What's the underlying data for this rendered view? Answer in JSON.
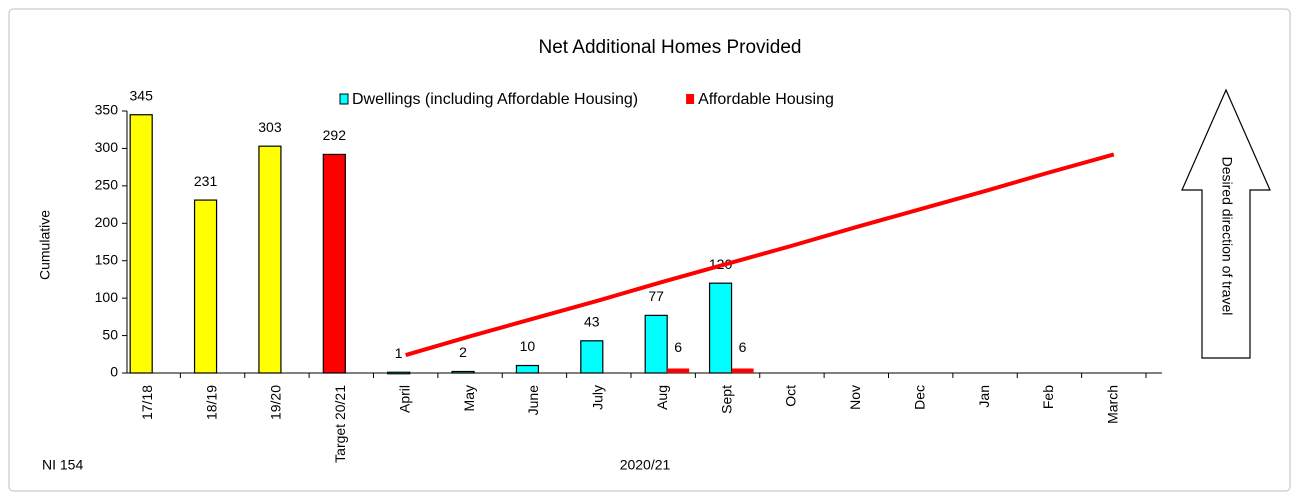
{
  "chart_data": {
    "type": "bar",
    "title": "Net Additional Homes Provided",
    "ylabel": "Cumulative",
    "xlabel": "2020/21",
    "footnote": "NI 154",
    "arrow_text": "Desired direction of travel",
    "categories": [
      "17/18",
      "18/19",
      "19/20",
      "Target 20/21",
      "April",
      "May",
      "June",
      "July",
      "Aug",
      "Sept",
      "Oct",
      "Nov",
      "Dec",
      "Jan",
      "Feb",
      "March"
    ],
    "series": [
      {
        "name": "Dwellings (including Affordable Housing)",
        "color": "#00ffff",
        "bar_colors": [
          "#ffff00",
          "#ffff00",
          "#ffff00",
          "#ff0000",
          "#00ffff",
          "#00ffff",
          "#00ffff",
          "#00ffff",
          "#00ffff",
          "#00ffff",
          "#00ffff",
          "#00ffff",
          "#00ffff",
          "#00ffff",
          "#00ffff",
          "#00ffff"
        ],
        "values": [
          345,
          231,
          303,
          292,
          1,
          2,
          10,
          43,
          77,
          120,
          null,
          null,
          null,
          null,
          null,
          null
        ]
      },
      {
        "name": "Affordable Housing",
        "color": "#ff0000",
        "values": [
          null,
          null,
          null,
          null,
          null,
          null,
          null,
          null,
          6,
          6,
          null,
          null,
          null,
          null,
          null,
          null
        ]
      }
    ],
    "target_line": {
      "color": "#ff0000",
      "values": [
        null,
        null,
        null,
        null,
        24,
        49,
        73,
        97,
        122,
        146,
        170,
        195,
        219,
        243,
        268,
        292
      ]
    },
    "ylim": [
      0,
      350
    ],
    "yticks": [
      0,
      50,
      100,
      150,
      200,
      250,
      300,
      350
    ]
  }
}
